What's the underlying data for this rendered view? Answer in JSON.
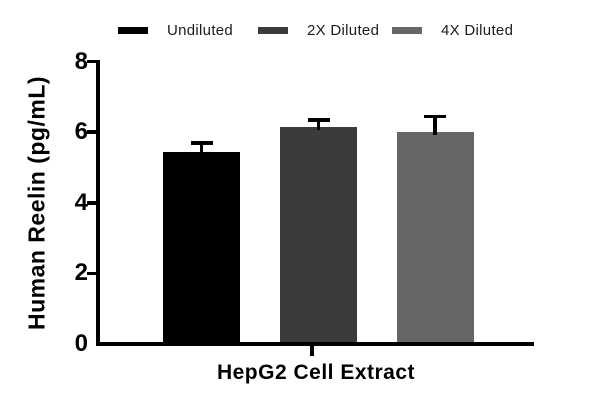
{
  "chart_data": {
    "type": "bar",
    "title": "",
    "categories": [
      "Undiluted",
      "2X Diluted",
      "4X Diluted"
    ],
    "values": [
      5.45,
      6.15,
      6.0
    ],
    "errors_upper": [
      0.25,
      0.2,
      0.45
    ],
    "bar_colors": [
      "#000000",
      "#3b3b3b",
      "#666666"
    ],
    "error_bar_color": "#000000",
    "axis_color": "#000000",
    "xlabel": "HepG2 Cell Extract",
    "ylabel": "Human Reelin (pg/mL)",
    "ylim": [
      0,
      8
    ],
    "yticks": [
      0,
      2,
      4,
      6,
      8
    ],
    "grid": false,
    "legend_position": "top",
    "legend": [
      {
        "label": "Undiluted",
        "color": "#000000"
      },
      {
        "label": "2X Diluted",
        "color": "#3b3b3b"
      },
      {
        "label": "4X Diluted",
        "color": "#666666"
      }
    ]
  }
}
